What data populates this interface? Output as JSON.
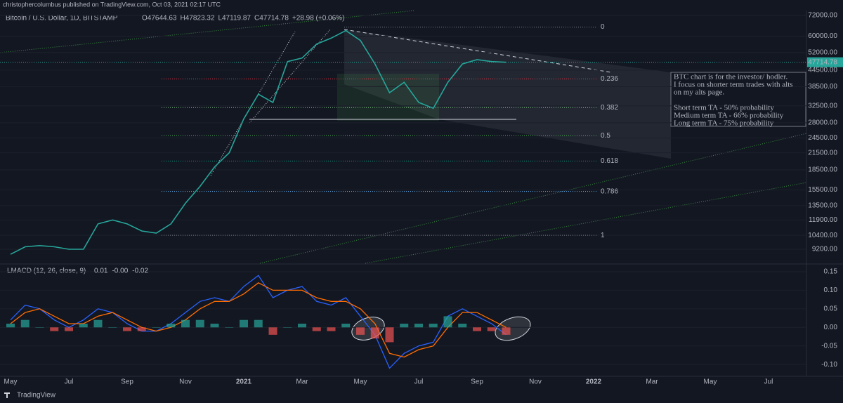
{
  "header": {
    "publisher": "christophercolumbus published on TradingView.com, Oct 03, 2021 02:17 UTC"
  },
  "footer": {
    "brand": "TradingView"
  },
  "chart_data": [
    {
      "type": "line",
      "title": "Bitcoin / U.S. Dollar, 1D, BITSTAMP",
      "ohlc": [
        "O47644.63",
        "H47823.32",
        "L47119.87",
        "C47714.78",
        "+28.98 (+0.06%)"
      ],
      "categories": [
        "May",
        null,
        null,
        null,
        "Jul",
        null,
        null,
        null,
        "Sep",
        null,
        null,
        null,
        "Nov",
        null,
        null,
        null,
        "2021",
        null,
        null,
        null,
        "Mar",
        null,
        null,
        null,
        "May",
        null,
        null,
        null,
        "Jul",
        null,
        null,
        null,
        "Sep",
        null,
        null,
        null,
        "Nov",
        null,
        null,
        null,
        "2022",
        null,
        null,
        null,
        "Mar",
        null,
        null,
        null,
        "May",
        null,
        null,
        null,
        "Jul",
        null,
        null,
        null
      ],
      "values": [
        8800,
        9400,
        9500,
        9400,
        9200,
        9200,
        11500,
        11900,
        11500,
        10800,
        10600,
        11500,
        13800,
        16000,
        19000,
        21500,
        29000,
        36000,
        33500,
        48000,
        49500,
        56000,
        59000,
        63000,
        57800,
        47000,
        36500,
        40000,
        33500,
        31800,
        40000,
        47000,
        48800,
        48000,
        47700,
        null,
        null,
        null,
        null,
        null,
        null,
        null,
        null,
        null,
        null,
        null,
        null,
        null,
        null,
        null,
        null,
        null,
        null,
        null,
        null,
        null
      ],
      "color": "#26a69a",
      "log_scale": true,
      "grid": true,
      "ylim": [
        8130,
        75200
      ],
      "yticks": [
        {
          "value": 72000,
          "label": "72000.00"
        },
        {
          "value": 60000,
          "label": "60000.00"
        },
        {
          "value": 52000,
          "label": "52000.00"
        },
        {
          "value": 44500,
          "label": "44500.00"
        },
        {
          "value": 38500,
          "label": "38500.00"
        },
        {
          "value": 32500,
          "label": "32500.00"
        },
        {
          "value": 28000,
          "label": "28000.00"
        },
        {
          "value": 24500,
          "label": "24500.00"
        },
        {
          "value": 21500,
          "label": "21500.00"
        },
        {
          "value": 18500,
          "label": "18500.00"
        },
        {
          "value": 15500,
          "label": "15500.00"
        },
        {
          "value": 13500,
          "label": "13500.00"
        },
        {
          "value": 11900,
          "label": "11900.00"
        },
        {
          "value": 10400,
          "label": "10400.00"
        },
        {
          "value": 9200,
          "label": "9200.00"
        }
      ],
      "last_price": {
        "value": 47714.78,
        "label": "47714.78"
      },
      "fib_levels": [
        {
          "label": "0",
          "price": 65000,
          "color": "#787b86"
        },
        {
          "label": "0.236",
          "price": 41200,
          "color": "#f23645"
        },
        {
          "label": "0.382",
          "price": 32000,
          "color": "#81c784"
        },
        {
          "label": "0.5",
          "price": 25000,
          "color": "#4caf50"
        },
        {
          "label": "0.618",
          "price": 20000,
          "color": "#089981"
        },
        {
          "label": "0.786",
          "price": 15300,
          "color": "#64b5f6"
        },
        {
          "label": "1",
          "price": 10400,
          "color": "#787b86"
        }
      ],
      "annotation": [
        [
          "BTC chart is for the investor/ hodler.",
          "I focus on shorter term trades with alts",
          "on my alts page."
        ],
        [
          "Short term TA - 50% probability",
          "Medium term TA - 66% probability",
          "Long term TA - 75% probability"
        ]
      ]
    },
    {
      "type": "macd",
      "title": "LMACD (12, 26, close, 9)",
      "legend_values": [
        "0.01",
        "-0.00",
        "-0.02"
      ],
      "series": [
        {
          "color": "#2962ff",
          "values": [
            0.02,
            0.06,
            0.05,
            0.02,
            0.0,
            0.02,
            0.05,
            0.04,
            0.01,
            -0.01,
            -0.01,
            0.01,
            0.04,
            0.07,
            0.08,
            0.07,
            0.11,
            0.14,
            0.08,
            0.1,
            0.11,
            0.07,
            0.06,
            0.08,
            0.03,
            -0.02,
            -0.11,
            -0.07,
            -0.05,
            -0.04,
            0.03,
            0.05,
            0.03,
            0.01,
            -0.02,
            null,
            null,
            null,
            null,
            null,
            null,
            null,
            null,
            null,
            null,
            null,
            null,
            null,
            null,
            null,
            null,
            null,
            null,
            null,
            null,
            null
          ]
        },
        {
          "color": "#ff6d00",
          "values": [
            0.01,
            0.04,
            0.05,
            0.03,
            0.01,
            0.01,
            0.03,
            0.04,
            0.02,
            0.0,
            -0.01,
            0.0,
            0.02,
            0.05,
            0.07,
            0.07,
            0.09,
            0.12,
            0.1,
            0.1,
            0.1,
            0.08,
            0.07,
            0.07,
            0.05,
            0.01,
            -0.07,
            -0.08,
            -0.06,
            -0.05,
            0.0,
            0.04,
            0.04,
            0.02,
            0.0,
            null,
            null,
            null,
            null,
            null,
            null,
            null,
            null,
            null,
            null,
            null,
            null,
            null,
            null,
            null,
            null,
            null,
            null,
            null,
            null,
            null
          ]
        },
        {
          "type": "bar",
          "color": "#26a69a",
          "color_down": "#ef5350",
          "values": [
            0.01,
            0.02,
            0.0,
            -0.01,
            -0.01,
            0.01,
            0.02,
            0.0,
            -0.01,
            -0.01,
            0.0,
            0.01,
            0.02,
            0.02,
            0.01,
            0.0,
            0.02,
            0.02,
            -0.02,
            0.0,
            0.01,
            -0.01,
            -0.01,
            0.01,
            -0.02,
            -0.03,
            -0.04,
            0.01,
            0.01,
            0.01,
            0.03,
            0.01,
            -0.01,
            -0.01,
            -0.02,
            null,
            null,
            null,
            null,
            null,
            null,
            null,
            null,
            null,
            null,
            null,
            null,
            null,
            null,
            null,
            null,
            null,
            null,
            null,
            null,
            null
          ]
        }
      ],
      "ylim": [
        -0.13,
        0.167
      ],
      "yticks": [
        0.15,
        {
          "value": 0.1,
          "label": "0.10"
        },
        0.05,
        {
          "value": 0,
          "label": "0.00"
        },
        -0.05,
        {
          "value": -0.1,
          "label": "-0.10"
        }
      ]
    }
  ]
}
